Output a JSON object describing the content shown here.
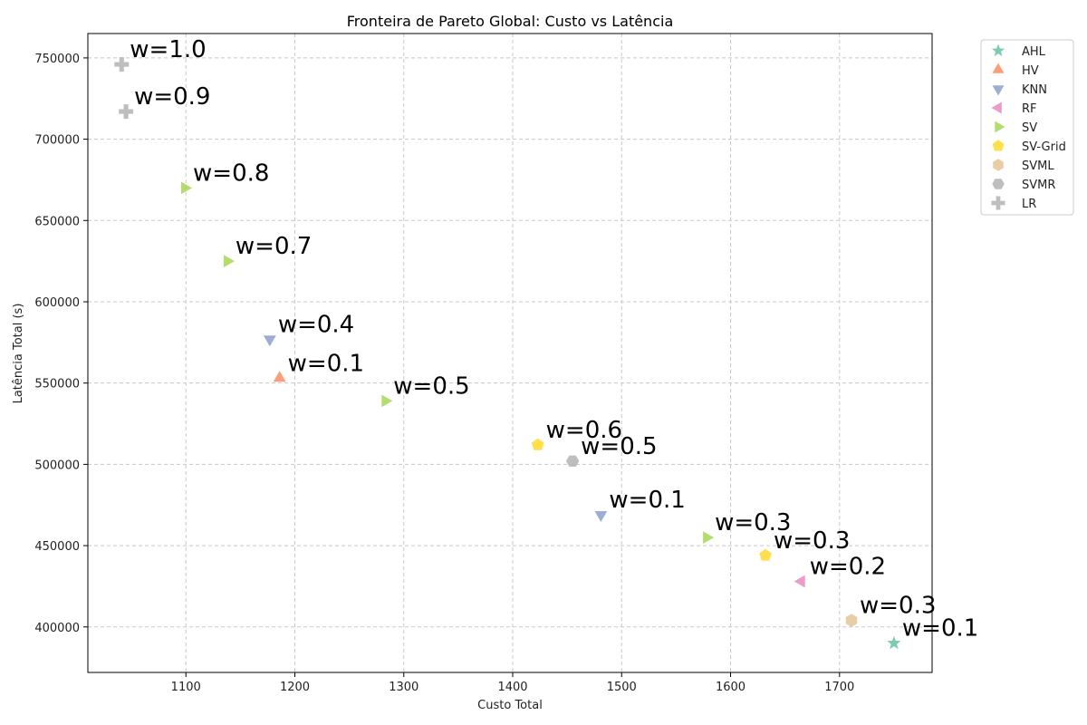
{
  "chart_data": {
    "type": "scatter",
    "title": "Fronteira de Pareto Global: Custo vs Latência",
    "xlabel": "Custo Total",
    "ylabel": "Latência Total (s)",
    "xlim": [
      1010,
      1785
    ],
    "ylim": [
      372000,
      765000
    ],
    "xticks": [
      1100,
      1200,
      1300,
      1400,
      1500,
      1600,
      1700
    ],
    "yticks": [
      400000,
      450000,
      500000,
      550000,
      600000,
      650000,
      700000,
      750000
    ],
    "grid": true,
    "legend_position": "upper right, outside plot",
    "series": [
      {
        "name": "AHL",
        "color": "#66c2a5",
        "marker": "star",
        "points": [
          {
            "x": 1750,
            "y": 390000,
            "label": "w=0.1"
          }
        ]
      },
      {
        "name": "HV",
        "color": "#fc8d62",
        "marker": "triangle-up",
        "points": [
          {
            "x": 1186,
            "y": 553000,
            "label": "w=0.1"
          }
        ]
      },
      {
        "name": "KNN",
        "color": "#8da0cb",
        "marker": "triangle-down",
        "points": [
          {
            "x": 1177,
            "y": 577000,
            "label": "w=0.4"
          },
          {
            "x": 1481,
            "y": 469000,
            "label": "w=0.1"
          }
        ]
      },
      {
        "name": "RF",
        "color": "#e78ac3",
        "marker": "triangle-left",
        "points": [
          {
            "x": 1665,
            "y": 428000,
            "label": "w=0.2"
          }
        ]
      },
      {
        "name": "SV",
        "color": "#a6d854",
        "marker": "triangle-right",
        "points": [
          {
            "x": 1099,
            "y": 670000,
            "label": "w=0.8"
          },
          {
            "x": 1138,
            "y": 625000,
            "label": "w=0.7"
          },
          {
            "x": 1283,
            "y": 539000,
            "label": "w=0.5"
          },
          {
            "x": 1578,
            "y": 455000,
            "label": "w=0.3"
          }
        ]
      },
      {
        "name": "SV-Grid",
        "color": "#ffd92f",
        "marker": "pentagon",
        "points": [
          {
            "x": 1423,
            "y": 512000,
            "label": "w=0.6"
          },
          {
            "x": 1632,
            "y": 444000,
            "label": "w=0.3"
          }
        ]
      },
      {
        "name": "SVML",
        "color": "#e5c494",
        "marker": "hexagon",
        "points": [
          {
            "x": 1711,
            "y": 404000,
            "label": "w=0.3"
          }
        ]
      },
      {
        "name": "SVMR",
        "color": "#b3b3b3",
        "marker": "hexagon-flat",
        "points": [
          {
            "x": 1455,
            "y": 502000,
            "label": "w=0.5"
          }
        ]
      },
      {
        "name": "LR",
        "color": "#b3b3b3",
        "marker": "plus",
        "points": [
          {
            "x": 1041,
            "y": 746000,
            "label": "w=1.0"
          },
          {
            "x": 1045,
            "y": 717000,
            "label": "w=0.9"
          }
        ]
      }
    ]
  }
}
